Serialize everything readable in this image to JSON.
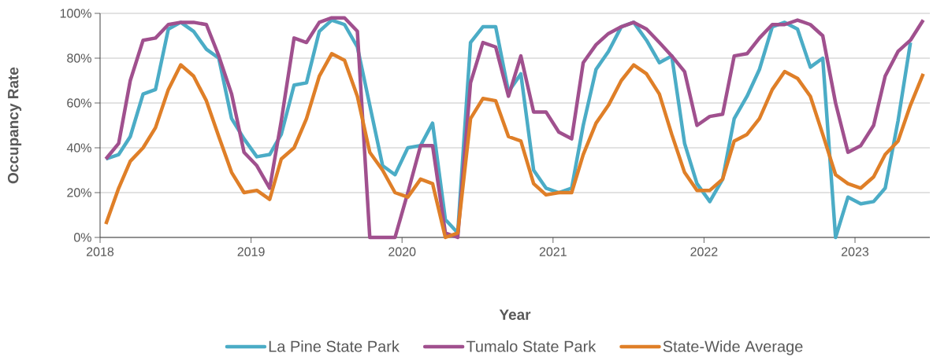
{
  "chart_data": {
    "type": "line",
    "xlabel": "Year",
    "ylabel": "Occupancy Rate",
    "x": [
      "2018-01-15",
      "2018-02-15",
      "2018-03-15",
      "2018-04-15",
      "2018-05-15",
      "2018-06-15",
      "2018-07-15",
      "2018-08-15",
      "2018-09-15",
      "2018-10-15",
      "2018-11-15",
      "2018-12-15",
      "2019-01-15",
      "2019-02-15",
      "2019-03-15",
      "2019-04-15",
      "2019-05-15",
      "2019-06-15",
      "2019-07-15",
      "2019-08-15",
      "2019-09-15",
      "2019-10-15",
      "2019-11-15",
      "2019-12-15",
      "2020-01-15",
      "2020-02-15",
      "2020-03-15",
      "2020-04-15",
      "2020-05-15",
      "2020-06-15",
      "2020-07-15",
      "2020-08-15",
      "2020-09-15",
      "2020-10-15",
      "2020-11-15",
      "2020-12-15",
      "2021-01-15",
      "2021-02-15",
      "2021-03-15",
      "2021-04-15",
      "2021-05-15",
      "2021-06-15",
      "2021-07-15",
      "2021-08-15",
      "2021-09-15",
      "2021-10-15",
      "2021-11-15",
      "2021-12-15",
      "2022-01-15",
      "2022-02-15",
      "2022-03-15",
      "2022-04-15",
      "2022-05-15",
      "2022-06-15",
      "2022-07-15",
      "2022-08-15",
      "2022-09-15",
      "2022-10-15",
      "2022-11-15",
      "2022-12-15",
      "2023-01-15",
      "2023-02-15",
      "2023-03-15",
      "2023-04-15",
      "2023-05-15",
      "2023-06-15"
    ],
    "series": [
      {
        "name": "La Pine State Park",
        "color": "#4bacc6",
        "values": [
          35,
          37,
          45,
          64,
          66,
          93,
          96,
          92,
          84,
          80,
          53,
          44,
          36,
          37,
          46,
          68,
          69,
          92,
          97,
          95,
          85,
          59,
          32,
          28,
          40,
          41,
          51,
          8,
          2,
          87,
          94,
          94,
          65,
          73,
          30,
          22,
          20,
          22,
          50,
          75,
          83,
          94,
          96,
          88,
          78,
          81,
          42,
          24,
          16,
          26,
          53,
          63,
          75,
          94,
          96,
          93,
          76,
          80,
          0,
          18,
          15,
          16,
          22,
          52,
          87,
          null
        ]
      },
      {
        "name": "Tumalo State Park",
        "color": "#a0508e",
        "values": [
          35,
          42,
          70,
          88,
          89,
          95,
          96,
          96,
          95,
          81,
          64,
          38,
          32,
          22,
          52,
          89,
          87,
          96,
          98,
          98,
          92,
          0,
          0,
          0,
          20,
          41,
          41,
          2,
          0,
          69,
          87,
          85,
          63,
          81,
          56,
          56,
          47,
          44,
          78,
          86,
          91,
          94,
          96,
          93,
          87,
          81,
          74,
          50,
          54,
          55,
          81,
          82,
          89,
          95,
          95,
          97,
          95,
          90,
          60,
          38,
          41,
          50,
          72,
          83,
          88,
          97
        ]
      },
      {
        "name": "State-Wide Average",
        "color": "#df7f28",
        "values": [
          6,
          22,
          34,
          40,
          49,
          66,
          77,
          72,
          61,
          45,
          29,
          20,
          21,
          17,
          35,
          40,
          53,
          72,
          82,
          79,
          63,
          38,
          30,
          20,
          18,
          26,
          24,
          0,
          2,
          53,
          62,
          61,
          45,
          43,
          24,
          19,
          20,
          20,
          37,
          51,
          59,
          70,
          77,
          73,
          64,
          46,
          29,
          21,
          21,
          26,
          43,
          46,
          53,
          66,
          74,
          71,
          63,
          46,
          28,
          24,
          22,
          27,
          37,
          43,
          59,
          73
        ]
      }
    ],
    "xlim": [
      "2018-01-01",
      "2023-07-01"
    ],
    "ylim": [
      0,
      100
    ],
    "xticks": [
      "2018",
      "2019",
      "2020",
      "2021",
      "2022",
      "2023"
    ],
    "yticks": [
      {
        "value": 0,
        "label": "0%"
      },
      {
        "value": 20,
        "label": "20%"
      },
      {
        "value": 40,
        "label": "40%"
      },
      {
        "value": 60,
        "label": "60%"
      },
      {
        "value": 80,
        "label": "80%"
      },
      {
        "value": 100,
        "label": "100%"
      }
    ],
    "grid": "y",
    "legend": "bottom"
  }
}
